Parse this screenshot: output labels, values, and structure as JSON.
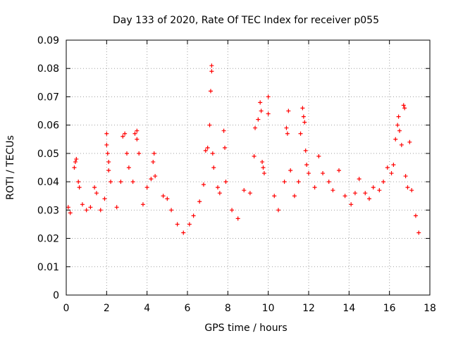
{
  "chart_data": {
    "type": "scatter",
    "title": "Day 133 of 2020, Rate Of TEC Index for receiver p055",
    "xlabel": "GPS time / hours",
    "ylabel": "ROTI / TECUs",
    "xlim": [
      0,
      18
    ],
    "ylim": [
      0,
      0.09
    ],
    "x_ticks": [
      "0",
      "2",
      "4",
      "6",
      "8",
      "10",
      "12",
      "14",
      "16",
      "18"
    ],
    "y_ticks": [
      "0",
      "0.01",
      "0.02",
      "0.03",
      "0.04",
      "0.05",
      "0.06",
      "0.07",
      "0.08",
      "0.09"
    ],
    "grid": true,
    "marker": "+",
    "color": "#ff0000",
    "series": [
      {
        "name": "ROTI",
        "points": [
          [
            0.1,
            0.031
          ],
          [
            0.2,
            0.029
          ],
          [
            0.4,
            0.045
          ],
          [
            0.45,
            0.047
          ],
          [
            0.5,
            0.048
          ],
          [
            0.6,
            0.04
          ],
          [
            0.65,
            0.038
          ],
          [
            0.8,
            0.032
          ],
          [
            1.0,
            0.03
          ],
          [
            1.2,
            0.031
          ],
          [
            1.4,
            0.038
          ],
          [
            1.5,
            0.036
          ],
          [
            1.7,
            0.03
          ],
          [
            1.9,
            0.034
          ],
          [
            2.0,
            0.057
          ],
          [
            2.0,
            0.053
          ],
          [
            2.05,
            0.05
          ],
          [
            2.1,
            0.047
          ],
          [
            2.1,
            0.044
          ],
          [
            2.2,
            0.04
          ],
          [
            2.5,
            0.031
          ],
          [
            2.7,
            0.04
          ],
          [
            2.8,
            0.056
          ],
          [
            2.9,
            0.057
          ],
          [
            3.0,
            0.05
          ],
          [
            3.1,
            0.045
          ],
          [
            3.3,
            0.04
          ],
          [
            3.4,
            0.057
          ],
          [
            3.5,
            0.058
          ],
          [
            3.5,
            0.055
          ],
          [
            3.6,
            0.05
          ],
          [
            3.8,
            0.032
          ],
          [
            4.0,
            0.038
          ],
          [
            4.2,
            0.041
          ],
          [
            4.3,
            0.047
          ],
          [
            4.35,
            0.05
          ],
          [
            4.4,
            0.042
          ],
          [
            4.8,
            0.035
          ],
          [
            5.0,
            0.034
          ],
          [
            5.2,
            0.03
          ],
          [
            5.5,
            0.025
          ],
          [
            5.8,
            0.022
          ],
          [
            6.1,
            0.025
          ],
          [
            6.3,
            0.028
          ],
          [
            6.6,
            0.033
          ],
          [
            6.8,
            0.039
          ],
          [
            6.9,
            0.051
          ],
          [
            7.0,
            0.052
          ],
          [
            7.1,
            0.06
          ],
          [
            7.15,
            0.072
          ],
          [
            7.2,
            0.079
          ],
          [
            7.2,
            0.081
          ],
          [
            7.25,
            0.05
          ],
          [
            7.3,
            0.045
          ],
          [
            7.5,
            0.038
          ],
          [
            7.6,
            0.036
          ],
          [
            7.8,
            0.058
          ],
          [
            7.85,
            0.052
          ],
          [
            7.9,
            0.04
          ],
          [
            8.2,
            0.03
          ],
          [
            8.5,
            0.027
          ],
          [
            8.8,
            0.037
          ],
          [
            9.1,
            0.036
          ],
          [
            9.3,
            0.049
          ],
          [
            9.35,
            0.059
          ],
          [
            9.5,
            0.062
          ],
          [
            9.6,
            0.068
          ],
          [
            9.65,
            0.065
          ],
          [
            9.7,
            0.047
          ],
          [
            9.75,
            0.045
          ],
          [
            9.8,
            0.043
          ],
          [
            10.0,
            0.07
          ],
          [
            10.0,
            0.064
          ],
          [
            10.3,
            0.035
          ],
          [
            10.5,
            0.03
          ],
          [
            10.8,
            0.04
          ],
          [
            10.9,
            0.059
          ],
          [
            10.95,
            0.057
          ],
          [
            11.0,
            0.065
          ],
          [
            11.1,
            0.044
          ],
          [
            11.3,
            0.035
          ],
          [
            11.5,
            0.04
          ],
          [
            11.6,
            0.057
          ],
          [
            11.7,
            0.066
          ],
          [
            11.75,
            0.063
          ],
          [
            11.8,
            0.061
          ],
          [
            11.85,
            0.051
          ],
          [
            11.9,
            0.046
          ],
          [
            12.0,
            0.043
          ],
          [
            12.3,
            0.038
          ],
          [
            12.5,
            0.049
          ],
          [
            12.7,
            0.043
          ],
          [
            13.0,
            0.04
          ],
          [
            13.2,
            0.037
          ],
          [
            13.5,
            0.044
          ],
          [
            13.8,
            0.035
          ],
          [
            14.1,
            0.032
          ],
          [
            14.3,
            0.036
          ],
          [
            14.5,
            0.041
          ],
          [
            14.8,
            0.036
          ],
          [
            15.0,
            0.034
          ],
          [
            15.2,
            0.038
          ],
          [
            15.5,
            0.037
          ],
          [
            15.7,
            0.04
          ],
          [
            15.9,
            0.045
          ],
          [
            16.1,
            0.043
          ],
          [
            16.2,
            0.046
          ],
          [
            16.3,
            0.055
          ],
          [
            16.4,
            0.06
          ],
          [
            16.45,
            0.063
          ],
          [
            16.5,
            0.058
          ],
          [
            16.6,
            0.053
          ],
          [
            16.7,
            0.067
          ],
          [
            16.75,
            0.066
          ],
          [
            16.8,
            0.042
          ],
          [
            16.9,
            0.038
          ],
          [
            17.0,
            0.054
          ],
          [
            17.1,
            0.037
          ],
          [
            17.3,
            0.028
          ],
          [
            17.45,
            0.022
          ]
        ]
      }
    ]
  }
}
